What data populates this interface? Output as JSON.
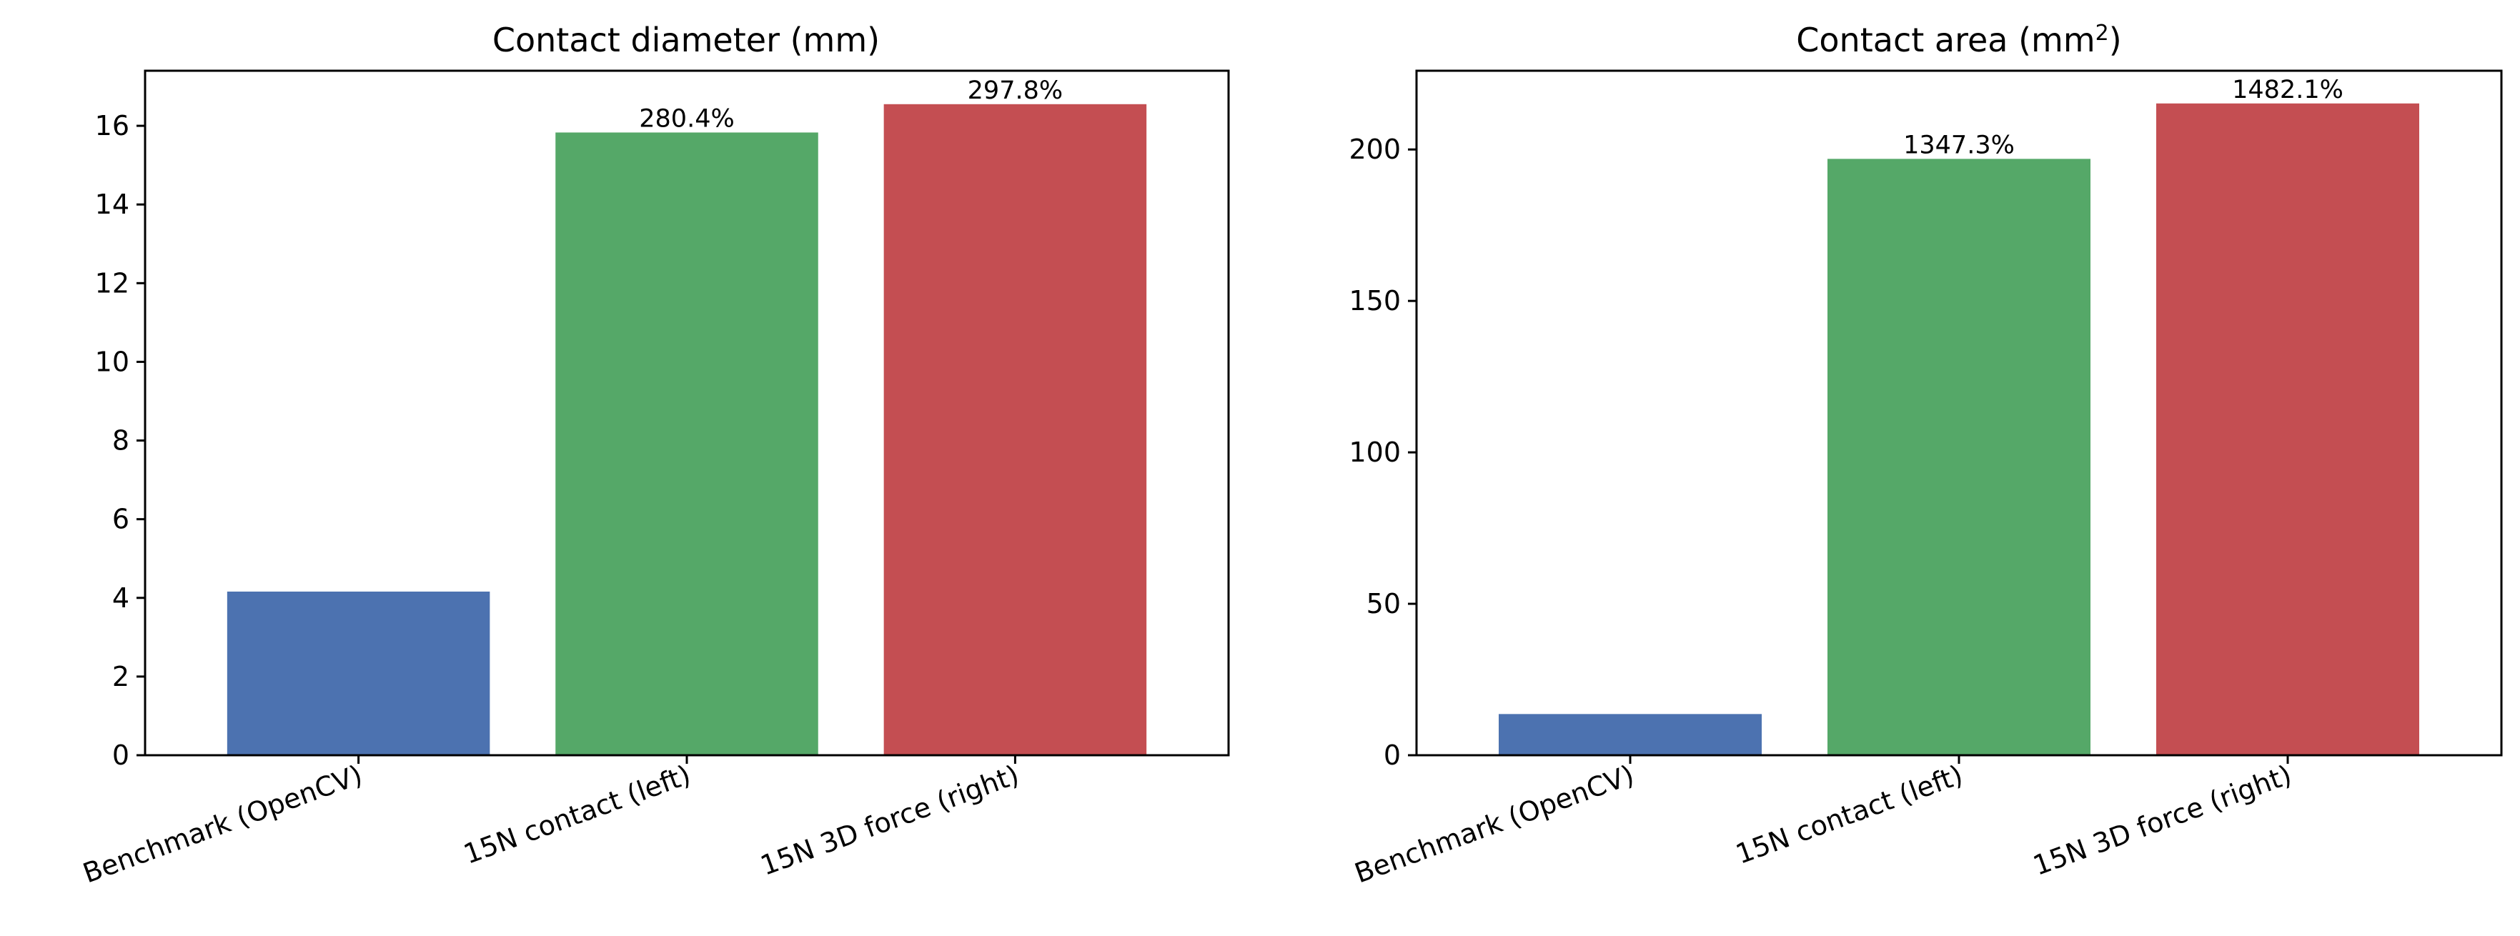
{
  "chart_data": [
    {
      "type": "bar",
      "title": "Contact diameter (mm)",
      "title_sup": "",
      "title_suffix": "",
      "categories": [
        "Benchmark (OpenCV)",
        "15N contact (left)",
        "15N 3D force (right)"
      ],
      "values": [
        4.16,
        15.83,
        16.55
      ],
      "data_labels": [
        "",
        "280.4%",
        "297.8%"
      ],
      "colors": [
        "#4c72b0",
        "#55a868",
        "#c44e52"
      ],
      "ylim": [
        0,
        17.4
      ],
      "yticks": [
        0,
        2,
        4,
        6,
        8,
        10,
        12,
        14,
        16
      ],
      "xlabel": "",
      "ylabel": "",
      "grid": false
    },
    {
      "type": "bar",
      "title": "Contact area (mm",
      "title_sup": "2",
      "title_suffix": ")",
      "categories": [
        "Benchmark (OpenCV)",
        "15N contact (left)",
        "15N 3D force (right)"
      ],
      "values": [
        13.6,
        196.9,
        215.2
      ],
      "data_labels": [
        "",
        "1347.3%",
        "1482.1%"
      ],
      "colors": [
        "#4c72b0",
        "#55a868",
        "#c44e52"
      ],
      "ylim": [
        0,
        226
      ],
      "yticks": [
        0,
        50,
        100,
        150,
        200
      ],
      "xlabel": "",
      "ylabel": "",
      "grid": false
    }
  ]
}
